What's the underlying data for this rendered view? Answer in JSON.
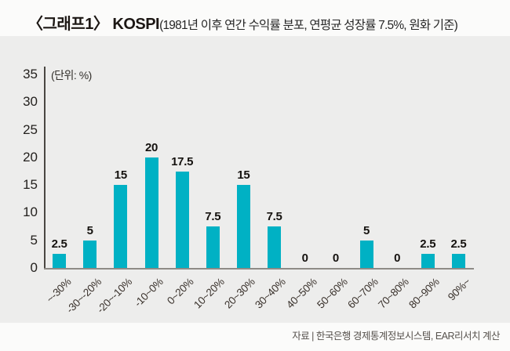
{
  "header": {
    "title_bold": "〈그래프1〉 KOSPI",
    "title_detail": "(1981년 이후 연간 수익률 분포, 연평균 성장률 7.5%, 원화 기준)"
  },
  "chart_data": {
    "type": "bar",
    "title": "〈그래프1〉 KOSPI(1981년 이후 연간 수익률 분포, 연평균 성장률 7.5%, 원화 기준)",
    "unit_label": "(단위: %)",
    "categories": [
      "~-30%",
      "-30~-20%",
      "-20~-10%",
      "-10~0%",
      "0~20%",
      "10~20%",
      "20~30%",
      "30~40%",
      "40~50%",
      "50~60%",
      "60~70%",
      "70~80%",
      "80~90%",
      "90%~"
    ],
    "values": [
      2.5,
      5,
      15,
      20,
      17.5,
      7.5,
      15,
      7.5,
      0,
      0,
      5,
      0,
      2.5,
      2.5
    ],
    "yticks": [
      0,
      5,
      10,
      15,
      20,
      25,
      30,
      35
    ],
    "ylim": [
      0,
      35
    ],
    "xlabel": "",
    "ylabel": "",
    "grid": false,
    "legend": false,
    "bar_color": "#00b1c4",
    "panel_bg": "#ededec",
    "axis_color": "#4a4742",
    "baseline_color": "#8e8b86"
  },
  "footer": {
    "source": "자료 | 한국은행 경제통계정보시스템, EAR리서치 계산"
  }
}
